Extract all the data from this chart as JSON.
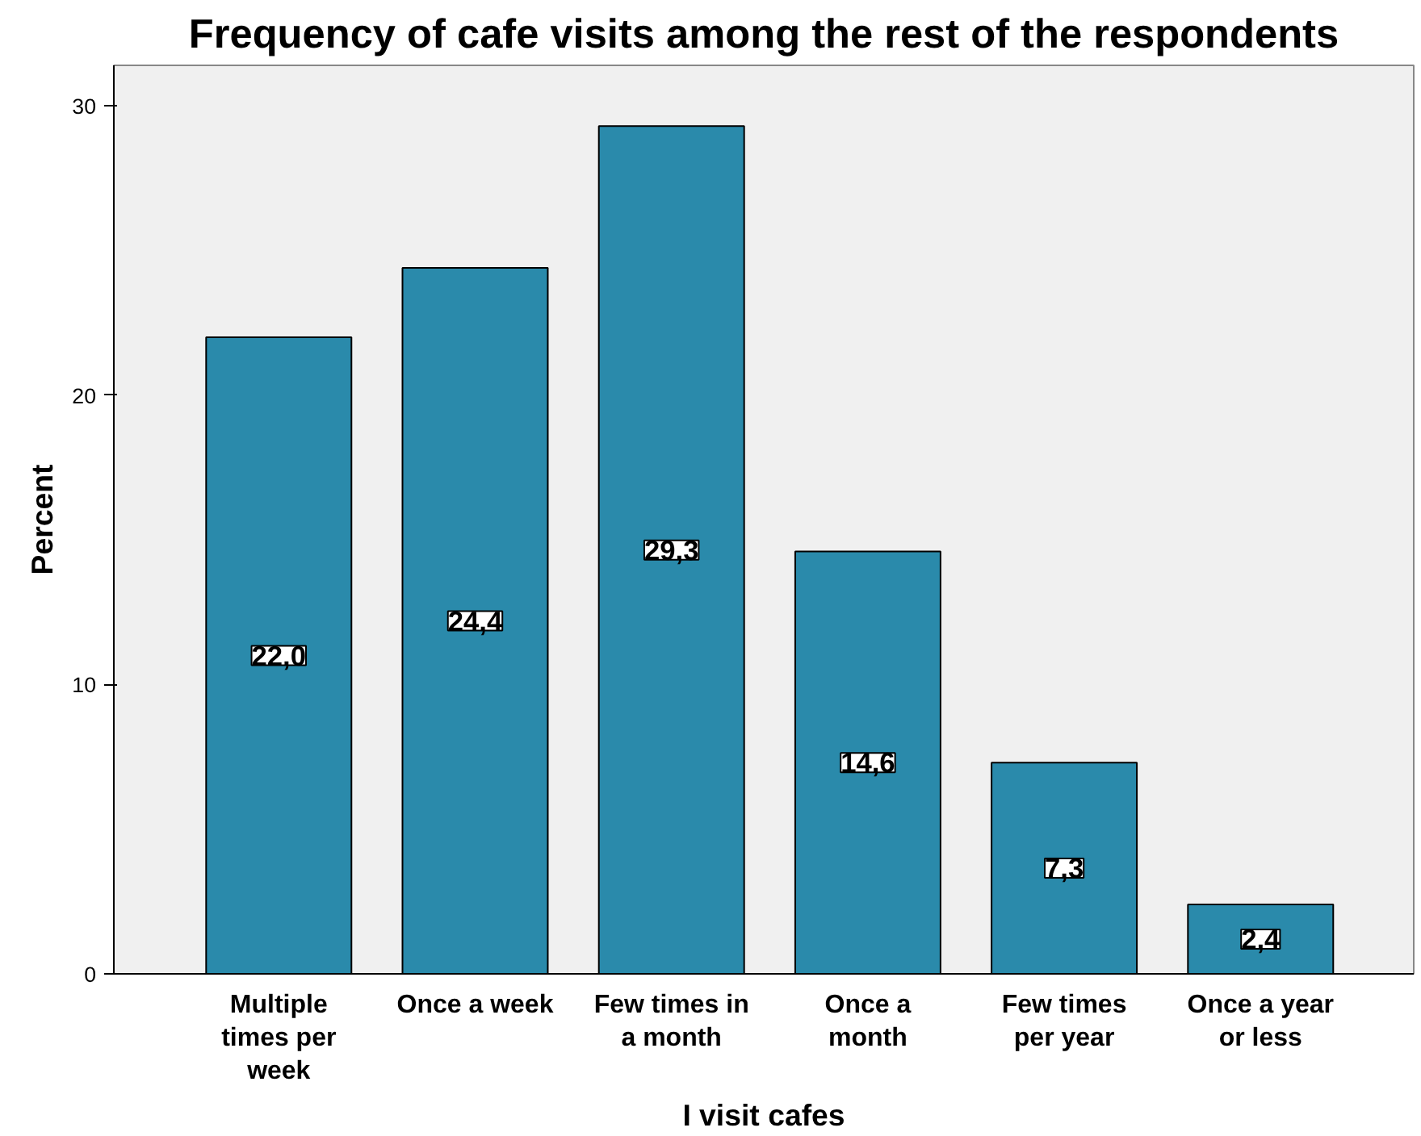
{
  "chart_data": {
    "type": "bar",
    "title": "Frequency of cafe visits among the rest of the respondents",
    "xlabel": "I visit cafes",
    "ylabel": "Percent",
    "categories": [
      "Multiple\ntimes per\nweek",
      "Once a week",
      "Few times in\na month",
      "Once a\nmonth",
      "Few times\nper year",
      "Once a year\nor less"
    ],
    "values": [
      22.0,
      24.4,
      29.3,
      14.6,
      7.3,
      2.4
    ],
    "value_labels": [
      "22,0",
      "24,4",
      "29,3",
      "14,6",
      "7,3",
      "2,4"
    ],
    "color": "#2a8aab",
    "ylim": [
      0,
      31.4
    ],
    "yticks": [
      0,
      10,
      20,
      30
    ],
    "grid": false
  }
}
